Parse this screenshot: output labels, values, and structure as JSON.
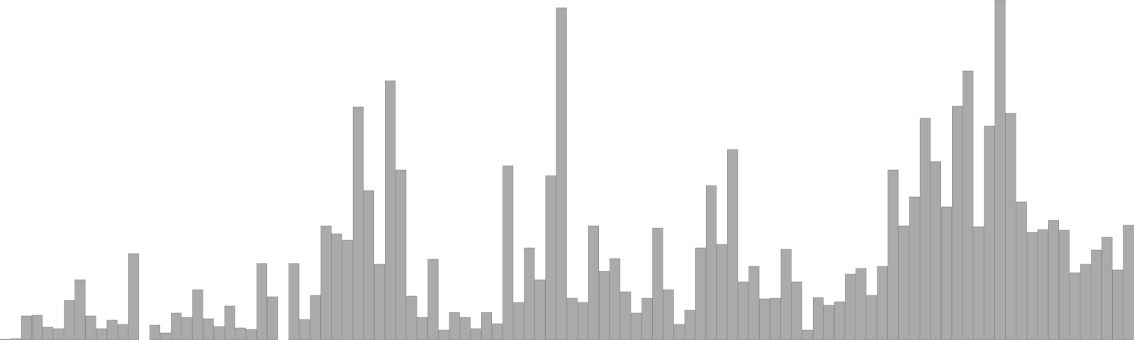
{
  "chart_data": {
    "type": "bar",
    "title": "",
    "xlabel": "",
    "ylabel": "",
    "ylim": [
      0,
      480
    ],
    "grid": false,
    "legend": "none",
    "bar_color": "#aaaaaa",
    "bar_edge_color": "#888888",
    "background_color": "#ffffff",
    "values": [
      1,
      2,
      34,
      35,
      18,
      16,
      56,
      85,
      34,
      16,
      28,
      22,
      122,
      0,
      21,
      10,
      38,
      32,
      71,
      30,
      19,
      48,
      17,
      15,
      108,
      61,
      0,
      108,
      29,
      63,
      161,
      150,
      141,
      329,
      211,
      107,
      366,
      240,
      62,
      32,
      114,
      14,
      39,
      32,
      16,
      39,
      23,
      246,
      53,
      130,
      85,
      232,
      469,
      59,
      53,
      161,
      97,
      115,
      68,
      38,
      59,
      158,
      71,
      22,
      42,
      130,
      218,
      135,
      269,
      82,
      104,
      58,
      59,
      128,
      82,
      14,
      60,
      49,
      54,
      93,
      101,
      63,
      104,
      240,
      161,
      202,
      313,
      252,
      188,
      330,
      380,
      160,
      302,
      480,
      320,
      195,
      152,
      156,
      169,
      155,
      95,
      107,
      127,
      145,
      99,
      162
    ]
  }
}
